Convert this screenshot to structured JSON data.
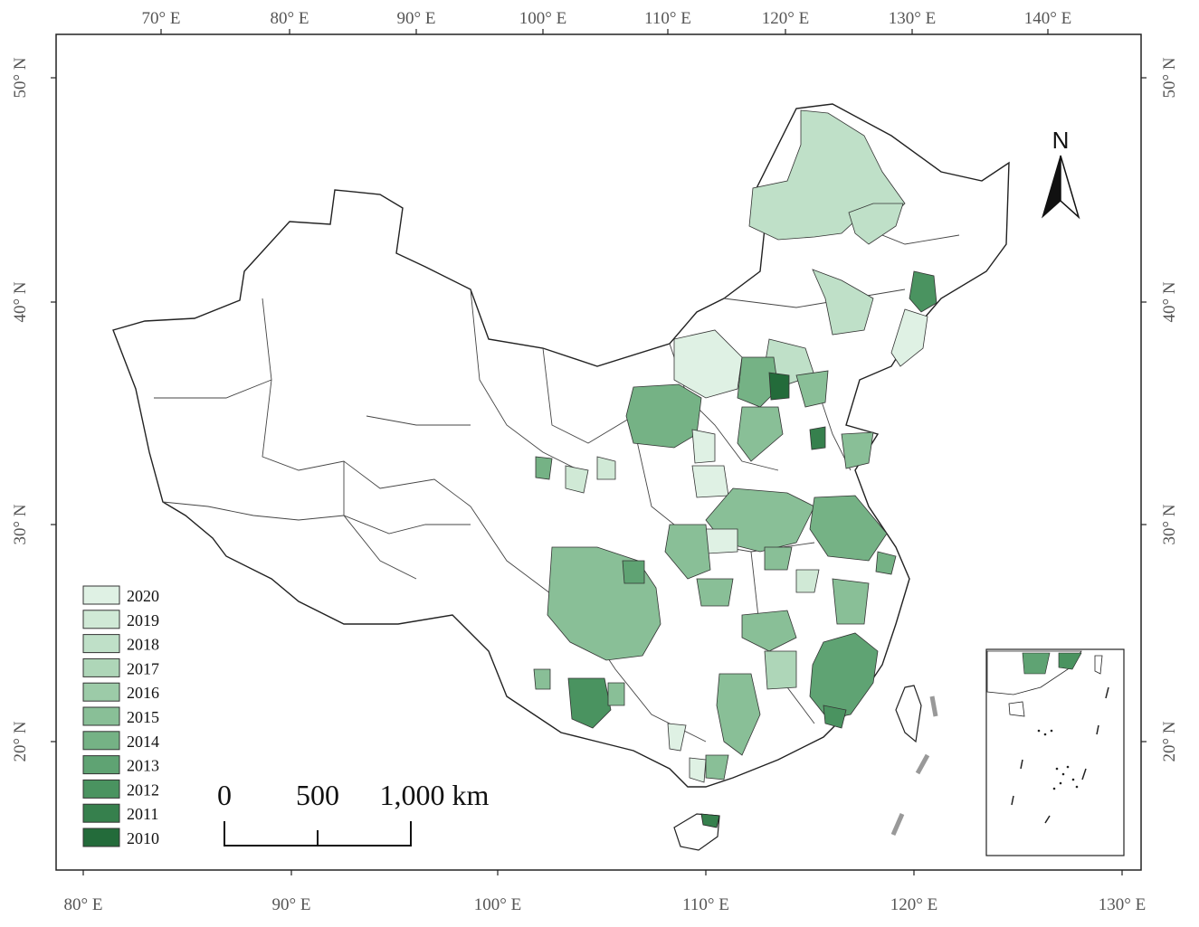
{
  "map": {
    "top_axis_labels": [
      "70° E",
      "80° E",
      "90° E",
      "100° E",
      "110° E",
      "120° E",
      "130° E",
      "140° E"
    ],
    "bottom_axis_labels": [
      "80° E",
      "90° E",
      "100° E",
      "110° E",
      "120° E",
      "130° E"
    ],
    "left_axis_labels": [
      "50° N",
      "40° N",
      "30° N",
      "20° N"
    ],
    "right_axis_labels": [
      "50° N",
      "40° N",
      "30° N",
      "20° N"
    ],
    "north_label": "N",
    "scale_bar": {
      "labels": [
        "0",
        "500",
        "1,000 km"
      ]
    },
    "legend": [
      {
        "year": "2020",
        "color": "#dff1e4"
      },
      {
        "year": "2019",
        "color": "#d0e9d6"
      },
      {
        "year": "2018",
        "color": "#bfe0c8"
      },
      {
        "year": "2017",
        "color": "#aed6b8"
      },
      {
        "year": "2016",
        "color": "#9ccba8"
      },
      {
        "year": "2015",
        "color": "#89bf97"
      },
      {
        "year": "2014",
        "color": "#75b285"
      },
      {
        "year": "2013",
        "color": "#5fa373"
      },
      {
        "year": "2012",
        "color": "#4a9360"
      },
      {
        "year": "2011",
        "color": "#36804d"
      },
      {
        "year": "2010",
        "color": "#236b3a"
      }
    ]
  }
}
